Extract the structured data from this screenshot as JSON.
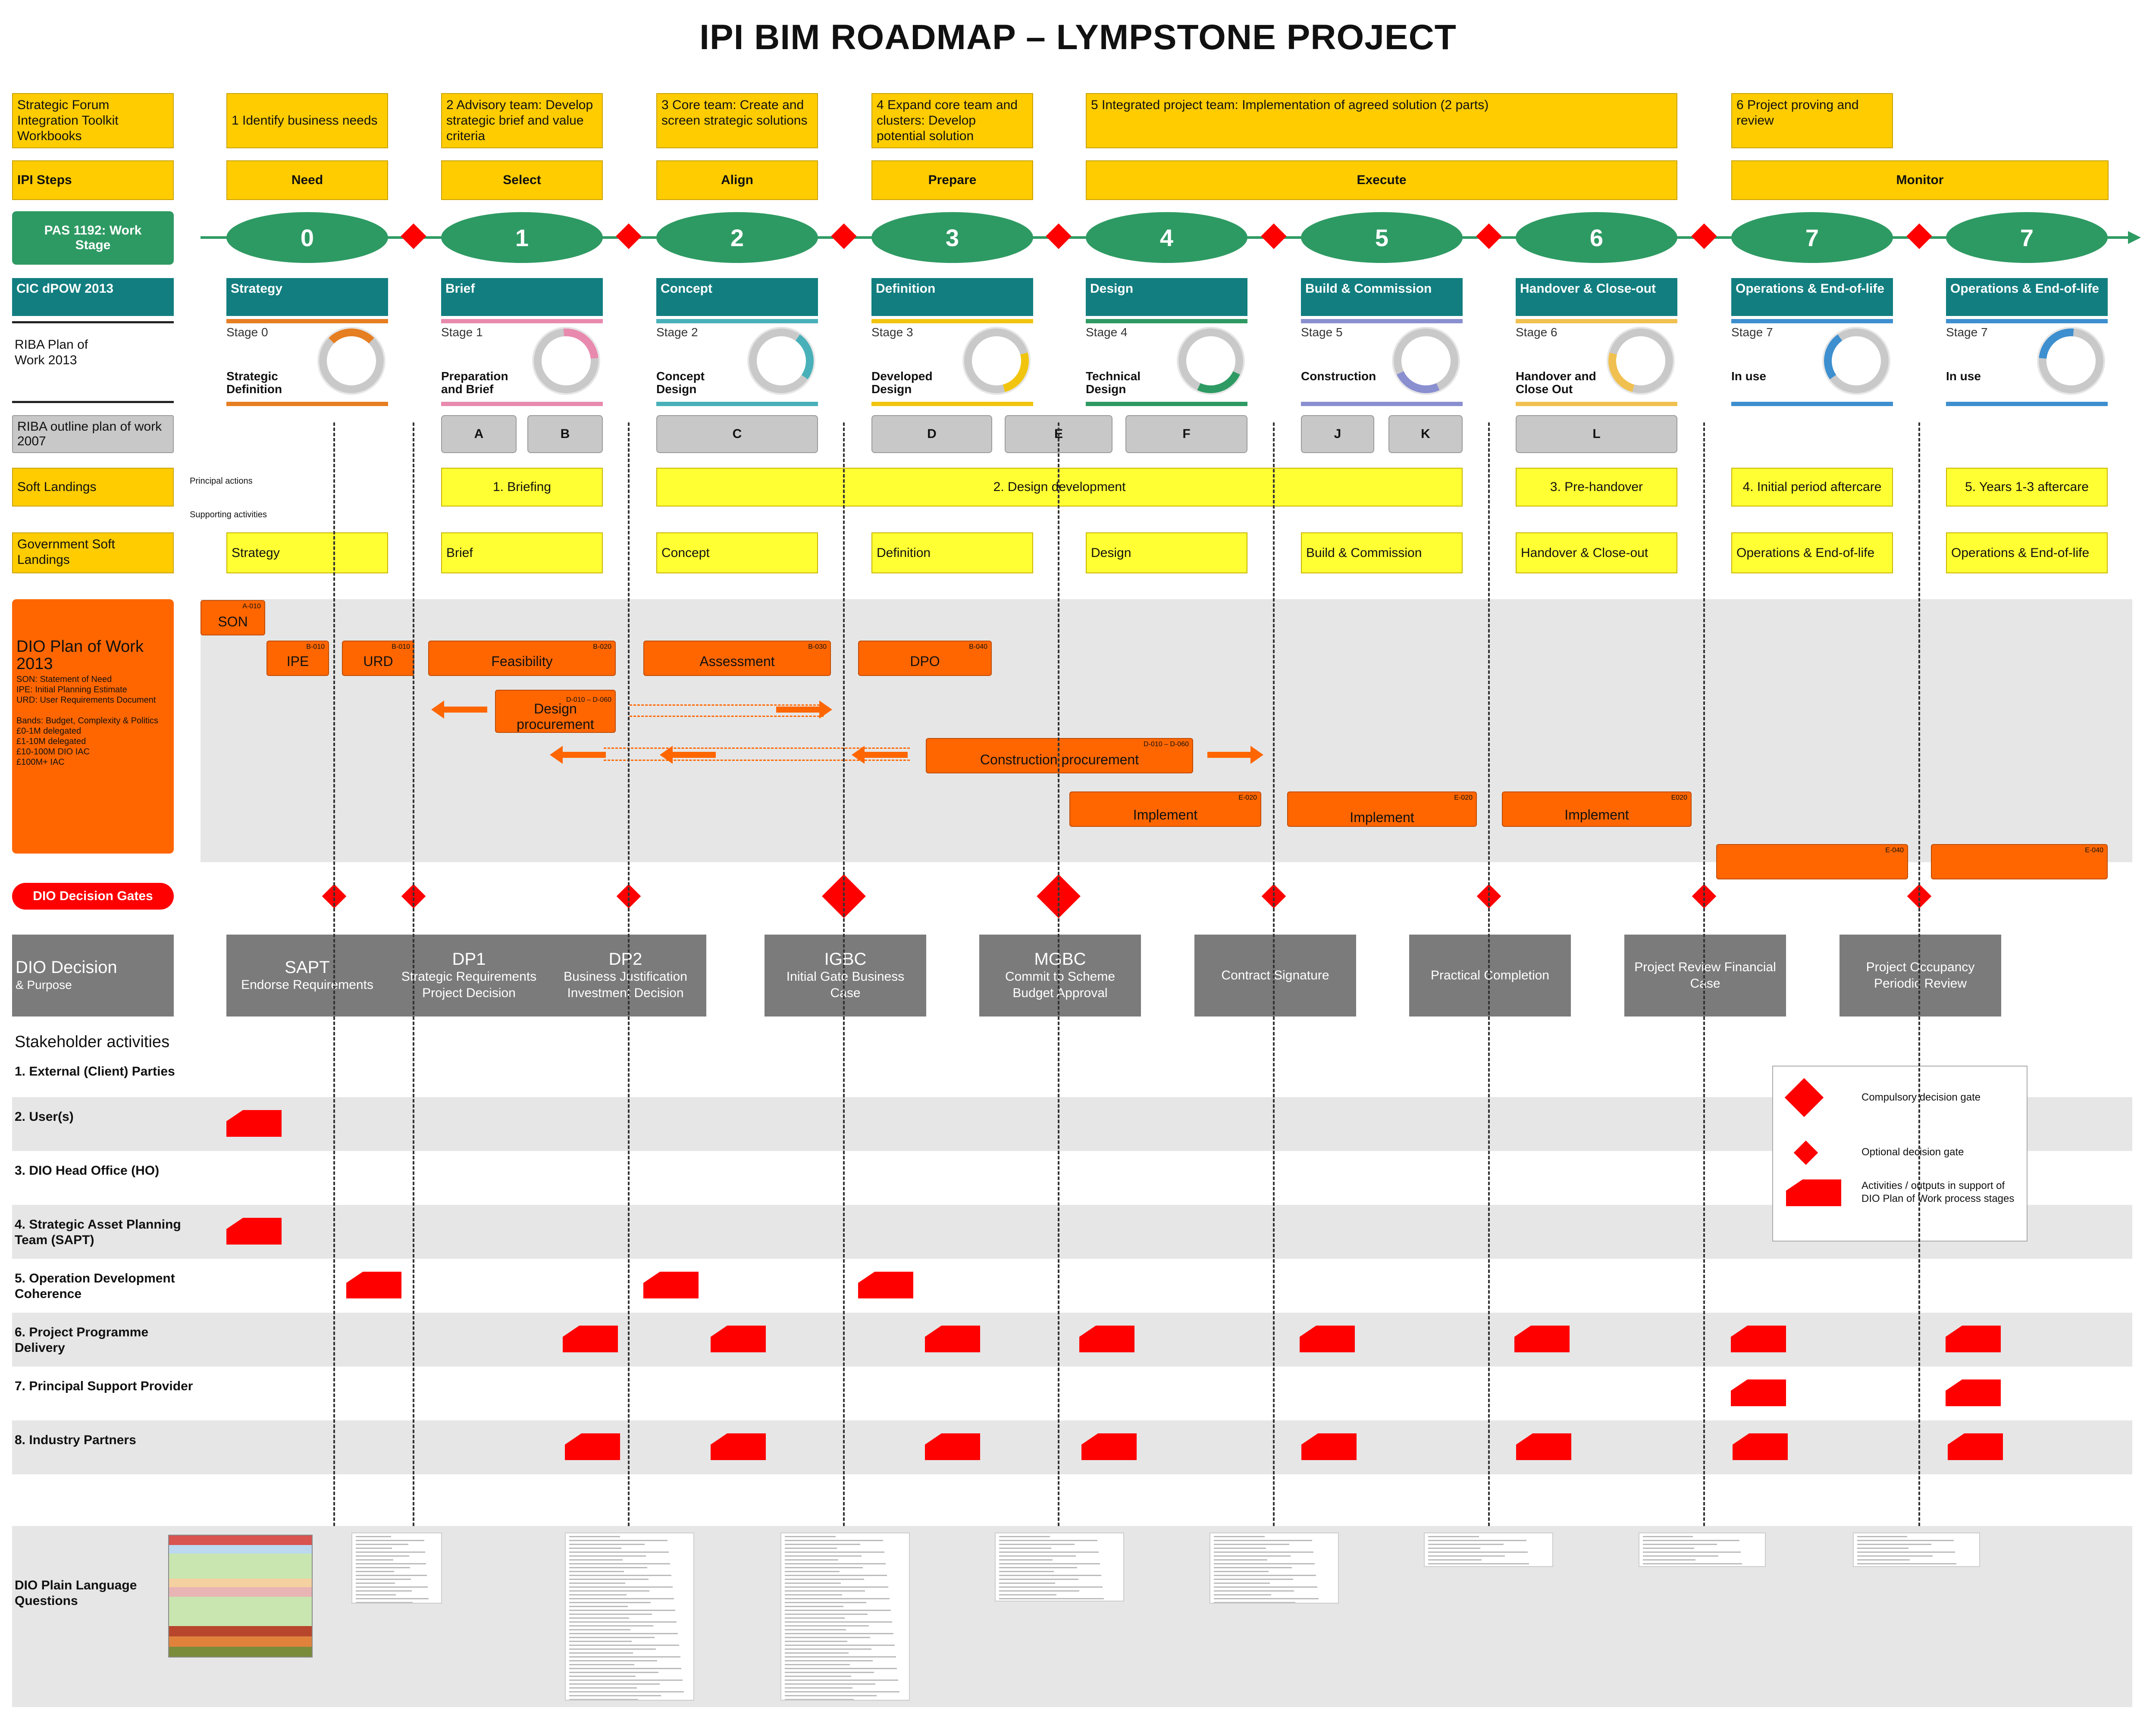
{
  "title": "IPI BIM ROADMAP – LYMPSTONE PROJECT",
  "row_labels": {
    "forum": "Strategic Forum Integration Toolkit Workbooks",
    "ipi_steps": "IPI Steps",
    "pas": "PAS 1192: Work Stage",
    "cic": "CIC dPOW 2013",
    "riba2013": "RIBA Plan of Work 2013",
    "riba2007": "RIBA outline plan of work 2007",
    "soft_landings": "Soft Landings",
    "gov_soft": "Government Soft Landings",
    "principal_actions": "Principal actions",
    "supporting_activities": "Supporting activities",
    "decision_gates": "DIO Decision Gates",
    "dio_decision": "DIO Decision",
    "dio_decision_sub": "& Purpose",
    "stakeholder_title": "Stakeholder activities",
    "plain_language": "DIO Plain Language Questions"
  },
  "forum_boxes": [
    "1 Identify business needs",
    "2 Advisory team: Develop strategic brief and value criteria",
    "3 Core team: Create and screen strategic solutions",
    "4 Expand core team and clusters: Develop potential solution",
    "5 Integrated project team: Implementation of agreed solution (2 parts)",
    "6 Project proving and review"
  ],
  "ipi_steps": [
    "Need",
    "Select",
    "Align",
    "Prepare",
    "Execute",
    "Monitor"
  ],
  "pas_stages": [
    "0",
    "1",
    "2",
    "3",
    "4",
    "5",
    "6",
    "7",
    "7"
  ],
  "cic_stages": [
    "Strategy",
    "Brief",
    "Concept",
    "Definition",
    "Design",
    "Build & Commission",
    "Handover & Close-out",
    "Operations & End-of-life",
    "Operations & End-of-life"
  ],
  "riba_stage_nums": [
    "Stage 0",
    "Stage 1",
    "Stage 2",
    "Stage 3",
    "Stage 4",
    "Stage 5",
    "Stage 6",
    "Stage 7",
    "Stage 7"
  ],
  "riba_stage_names": [
    "Strategic Definition",
    "Preparation and Brief",
    "Concept Design",
    "Developed Design",
    "Technical Design",
    "Construction",
    "Handover and Close Out",
    "In use",
    "In use"
  ],
  "riba_colors": [
    "#e67e22",
    "#e88aae",
    "#48b0b8",
    "#f1c40f",
    "#2e9a63",
    "#8a8fd0",
    "#f0c050",
    "#3d8fcf",
    "#3d8fcf"
  ],
  "riba2007": [
    "A",
    "B",
    "C",
    "D",
    "E",
    "F",
    "J",
    "K",
    "L"
  ],
  "soft_landings": [
    "1. Briefing",
    "2. Design development",
    "3. Pre-handover",
    "4. Initial period aftercare",
    "5. Years 1-3  aftercare"
  ],
  "gov_soft": [
    "Strategy",
    "Brief",
    "Concept",
    "Definition",
    "Design",
    "Build & Commission",
    "Handover & Close-out",
    "Operations & End-of-life",
    "Operations & End-of-life"
  ],
  "dio_pow": {
    "title": "DIO Plan of Work 2013",
    "notes": "SON: Statement of Need\nIPE: Initial Planning Estimate\nURD: User Requirements Document\n\nBands: Budget, Complexity & Politics\n£0-1M delegated\n£1-10M delegated\n£10-100M DIO IAC\n£100M+ IAC",
    "items": [
      {
        "label": "SON",
        "code": "A-010"
      },
      {
        "label": "IPE",
        "code": "B-010"
      },
      {
        "label": "URD",
        "code": "B-010"
      },
      {
        "label": "Feasibility",
        "code": "B-020"
      },
      {
        "label": "Assessment",
        "code": "B-030"
      },
      {
        "label": "DPO",
        "code": "B-040"
      },
      {
        "label": "Design procurement",
        "code": "D-010 – D-060"
      },
      {
        "label": "Construction procurement",
        "code": "D-010 – D-060"
      },
      {
        "label": "Implement",
        "code": "E-020"
      },
      {
        "label": "Implement",
        "code": "E-020"
      },
      {
        "label": "Implement",
        "code": "E020"
      },
      {
        "label": "",
        "code": "E-040"
      },
      {
        "label": "",
        "code": "E-040"
      }
    ]
  },
  "dio_decisions": [
    {
      "title": "SAPT",
      "text": "Endorse Requirements"
    },
    {
      "title": "DP1",
      "text": "Strategic Requirements Project Decision"
    },
    {
      "title": "DP2",
      "text": "Business Justification Investment Decision"
    },
    {
      "title": "IGBC",
      "text": "Initial Gate Business Case"
    },
    {
      "title": "MGBC",
      "text": "Commit to Scheme Budget Approval"
    },
    {
      "title": "",
      "text": "Contract Signature"
    },
    {
      "title": "",
      "text": "Practical Completion"
    },
    {
      "title": "",
      "text": "Project Review Financial Case"
    },
    {
      "title": "",
      "text": "Project Occupancy Periodic Review"
    }
  ],
  "stakeholders": [
    "1. External (Client) Parties",
    "2. User(s)",
    "3. DIO Head Office (HO)",
    "4. Strategic Asset Planning Team (SAPT)",
    "5. Operation Development Coherence",
    "6. Project Programme Delivery",
    "7. Principal Support Provider",
    "8. Industry Partners"
  ],
  "legend": {
    "compulsory": "Compulsory decision gate",
    "optional": "Optional decision gate",
    "activities": "Activities / outputs in support of DIO Plan of Work process stages"
  },
  "colors": {
    "yellow": "#ffcc00",
    "green": "#2e9a63",
    "teal": "#127e80",
    "orange": "#ff6600",
    "red": "#ff0000",
    "grey": "#7b7b7b"
  }
}
